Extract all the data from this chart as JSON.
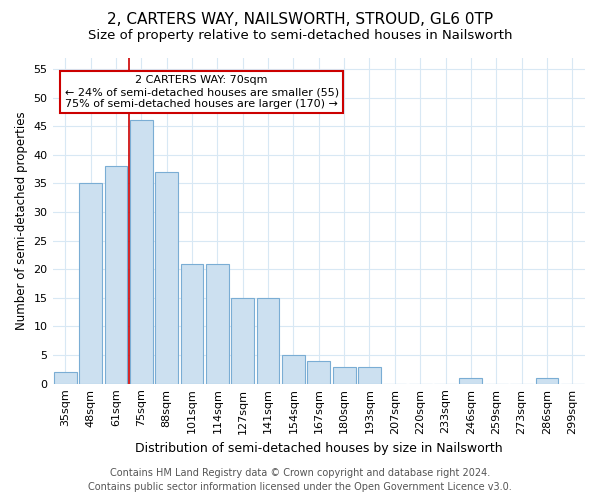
{
  "title": "2, CARTERS WAY, NAILSWORTH, STROUD, GL6 0TP",
  "subtitle": "Size of property relative to semi-detached houses in Nailsworth",
  "xlabel": "Distribution of semi-detached houses by size in Nailsworth",
  "ylabel": "Number of semi-detached properties",
  "categories": [
    "35sqm",
    "48sqm",
    "61sqm",
    "75sqm",
    "88sqm",
    "101sqm",
    "114sqm",
    "127sqm",
    "141sqm",
    "154sqm",
    "167sqm",
    "180sqm",
    "193sqm",
    "207sqm",
    "220sqm",
    "233sqm",
    "246sqm",
    "259sqm",
    "273sqm",
    "286sqm",
    "299sqm"
  ],
  "values": [
    2,
    35,
    38,
    46,
    37,
    21,
    21,
    15,
    15,
    5,
    4,
    3,
    3,
    0,
    0,
    0,
    1,
    0,
    0,
    1,
    0
  ],
  "bar_color": "#cce0f0",
  "bar_edge_color": "#7aadd4",
  "vline_color": "#cc0000",
  "vline_x": 2.5,
  "annotation_line1": "2 CARTERS WAY: 70sqm",
  "annotation_line2": "← 24% of semi-detached houses are smaller (55)",
  "annotation_line3": "75% of semi-detached houses are larger (170) →",
  "annotation_box_edgecolor": "#cc0000",
  "footer_line1": "Contains HM Land Registry data © Crown copyright and database right 2024.",
  "footer_line2": "Contains public sector information licensed under the Open Government Licence v3.0.",
  "ylim": [
    0,
    57
  ],
  "yticks": [
    0,
    5,
    10,
    15,
    20,
    25,
    30,
    35,
    40,
    45,
    50,
    55
  ],
  "background_color": "#ffffff",
  "plot_bg_color": "#ffffff",
  "grid_color": "#d8e8f4",
  "title_fontsize": 11,
  "subtitle_fontsize": 9.5,
  "tick_fontsize": 8,
  "ylabel_fontsize": 8.5,
  "xlabel_fontsize": 9,
  "annotation_fontsize": 8,
  "footer_fontsize": 7
}
